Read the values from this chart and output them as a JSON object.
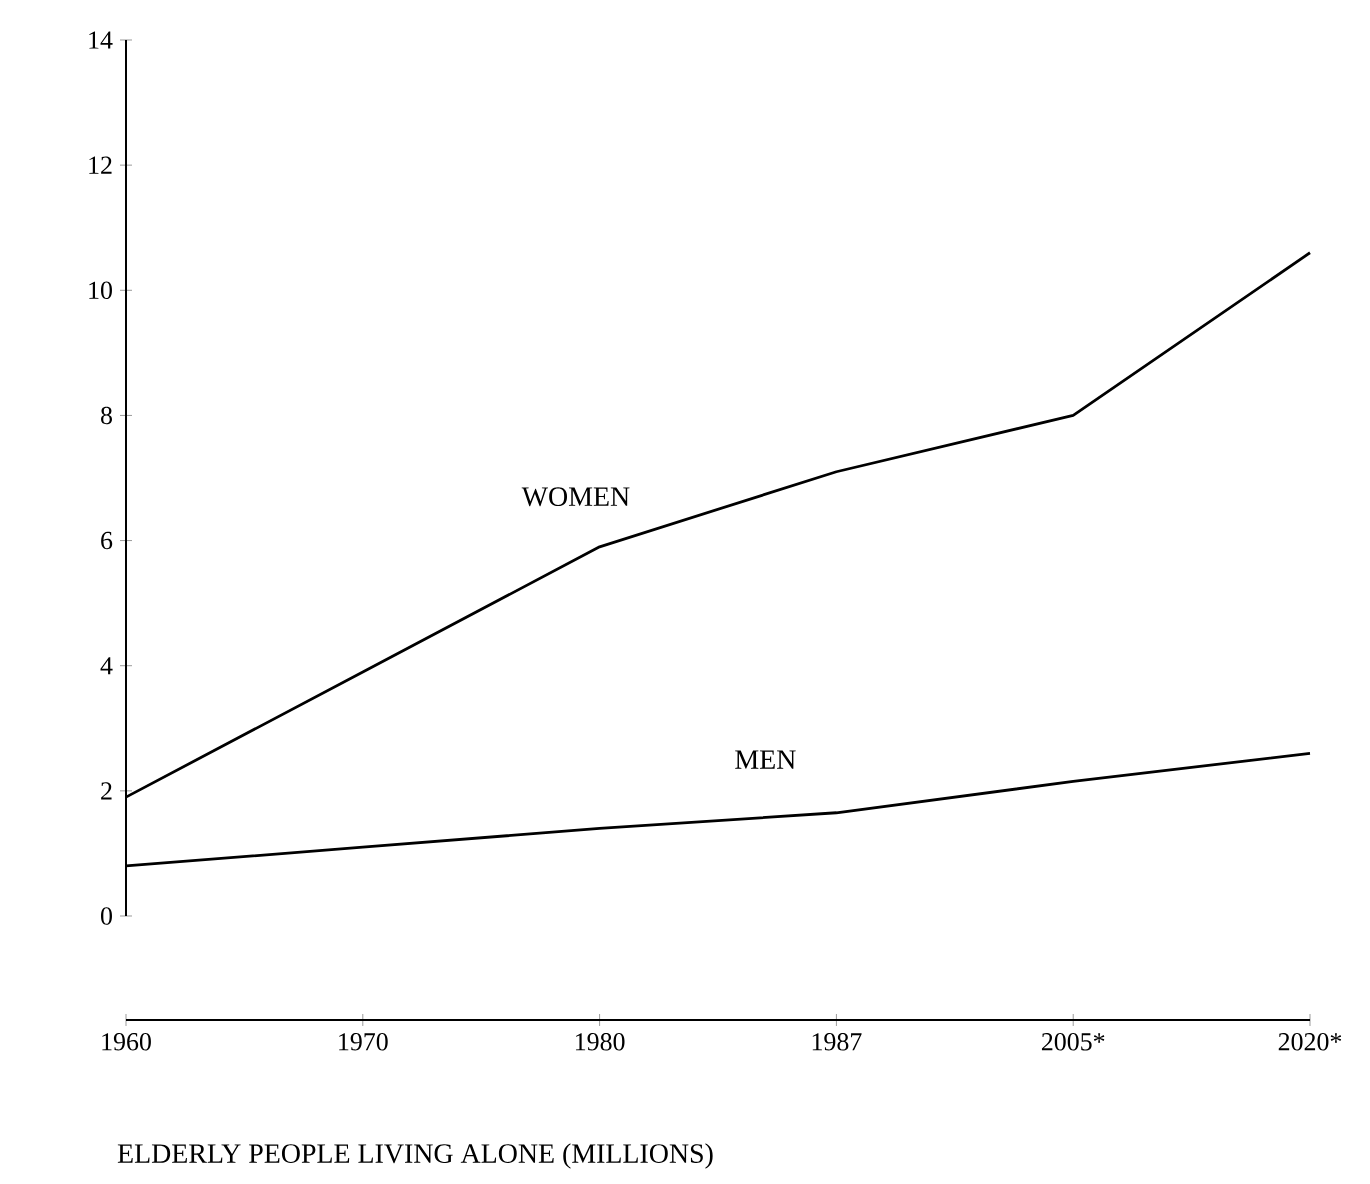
{
  "chart_data": {
    "type": "line",
    "title": "ELDERLY PEOPLE LIVING ALONE (MILLIONS)",
    "categories": [
      "1960",
      "1970",
      "1980",
      "1987",
      "2005*",
      "2020*"
    ],
    "series": [
      {
        "name": "WOMEN",
        "color": "#000000",
        "values": [
          1.9,
          3.9,
          5.9,
          7.1,
          8.0,
          10.6
        ]
      },
      {
        "name": "MEN",
        "color": "#000000",
        "values": [
          0.8,
          1.1,
          1.4,
          1.65,
          2.15,
          2.6
        ]
      }
    ],
    "ylim": [
      0,
      14
    ],
    "yticks": [
      0,
      2,
      4,
      6,
      8,
      10,
      12,
      14
    ],
    "grid": false,
    "legend": false,
    "marker": "none",
    "line_style": "solid"
  }
}
